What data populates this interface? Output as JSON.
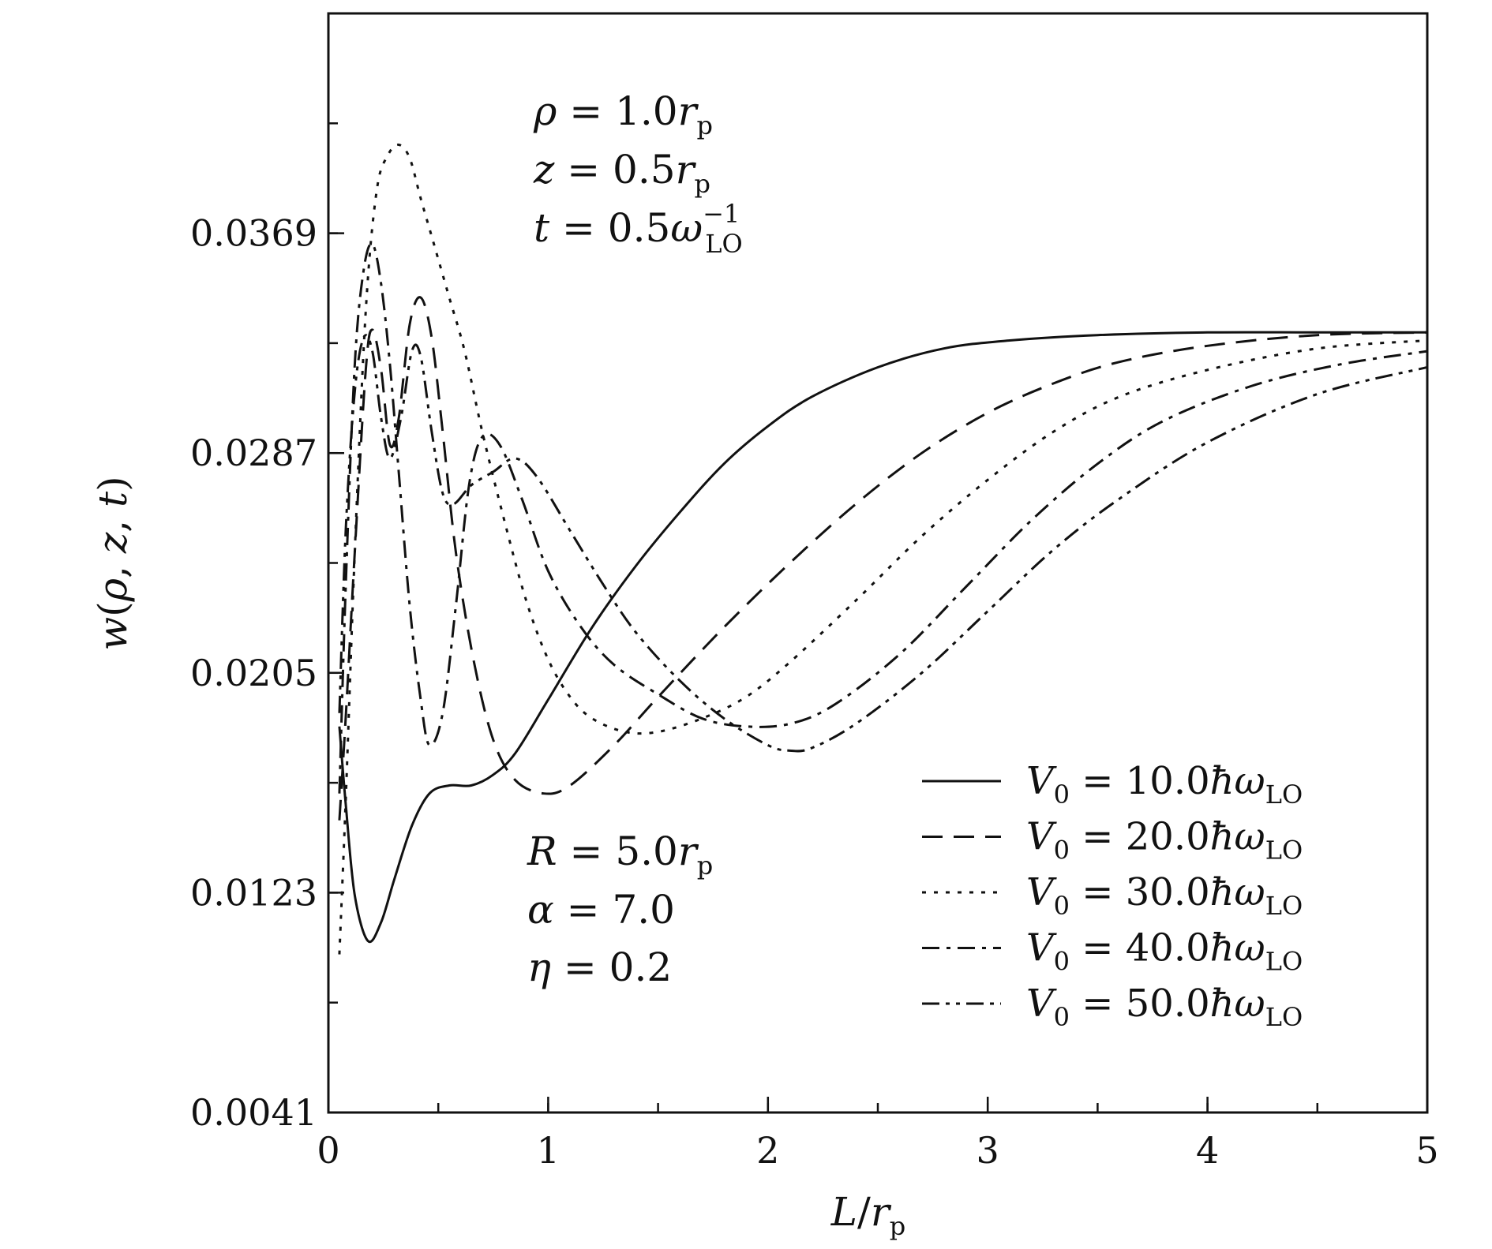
{
  "chart_data": {
    "type": "line",
    "xlabel": "L/r_p",
    "ylabel": "w(ρ, z, t)",
    "xlim": [
      0,
      5
    ],
    "ylim": [
      0.0041,
      0.0451
    ],
    "x_ticks": [
      0,
      1,
      2,
      3,
      4,
      5
    ],
    "x_tick_labels": [
      "0",
      "1",
      "2",
      "3",
      "4",
      "5"
    ],
    "y_ticks": [
      0.0041,
      0.0123,
      0.0205,
      0.0287,
      0.0369
    ],
    "y_tick_labels": [
      "0.0041",
      "0.0123",
      "0.0205",
      "0.0287",
      "0.0369"
    ],
    "x_minor_step": 0.5,
    "y_minor_step": 0.0041,
    "grid": false,
    "legend_position": "bottom-right",
    "annotations_top": [
      "ρ = 1.0r_p",
      "z = 0.5r_p",
      "t = 0.5ω_LO^-1"
    ],
    "annotations_bottom": [
      "R = 5.0r_p",
      "α = 7.0",
      "η = 0.2"
    ],
    "series": [
      {
        "name": "V0 = 10.0ħω_LO",
        "style": "solid",
        "points": [
          [
            0.05,
            0.0185
          ],
          [
            0.08,
            0.0155
          ],
          [
            0.12,
            0.0122
          ],
          [
            0.18,
            0.0105
          ],
          [
            0.24,
            0.0112
          ],
          [
            0.3,
            0.0128
          ],
          [
            0.38,
            0.0148
          ],
          [
            0.46,
            0.016
          ],
          [
            0.55,
            0.0163
          ],
          [
            0.65,
            0.0163
          ],
          [
            0.75,
            0.0167
          ],
          [
            0.85,
            0.0175
          ],
          [
            1.0,
            0.0195
          ],
          [
            1.2,
            0.0222
          ],
          [
            1.4,
            0.0245
          ],
          [
            1.6,
            0.0265
          ],
          [
            1.8,
            0.0283
          ],
          [
            2.0,
            0.0297
          ],
          [
            2.2,
            0.0308
          ],
          [
            2.5,
            0.0319
          ],
          [
            2.8,
            0.0326
          ],
          [
            3.1,
            0.0329
          ],
          [
            3.5,
            0.0331
          ],
          [
            4.0,
            0.0332
          ],
          [
            4.5,
            0.0332
          ],
          [
            5.0,
            0.0332
          ]
        ]
      },
      {
        "name": "V0 = 20.0ħω_LO",
        "style": "dashed",
        "points": [
          [
            0.05,
            0.015
          ],
          [
            0.08,
            0.019
          ],
          [
            0.12,
            0.025
          ],
          [
            0.17,
            0.0318
          ],
          [
            0.2,
            0.0333
          ],
          [
            0.24,
            0.0318
          ],
          [
            0.28,
            0.029
          ],
          [
            0.32,
            0.03
          ],
          [
            0.37,
            0.0335
          ],
          [
            0.42,
            0.0345
          ],
          [
            0.47,
            0.033
          ],
          [
            0.52,
            0.0295
          ],
          [
            0.58,
            0.025
          ],
          [
            0.66,
            0.021
          ],
          [
            0.75,
            0.018
          ],
          [
            0.85,
            0.0165
          ],
          [
            0.98,
            0.016
          ],
          [
            1.1,
            0.0163
          ],
          [
            1.3,
            0.0178
          ],
          [
            1.5,
            0.0196
          ],
          [
            1.8,
            0.0222
          ],
          [
            2.1,
            0.0246
          ],
          [
            2.4,
            0.0268
          ],
          [
            2.7,
            0.0287
          ],
          [
            3.0,
            0.0302
          ],
          [
            3.3,
            0.0313
          ],
          [
            3.6,
            0.0321
          ],
          [
            4.0,
            0.0327
          ],
          [
            4.5,
            0.0331
          ],
          [
            5.0,
            0.0332
          ]
        ]
      },
      {
        "name": "V0 = 30.0ħω_LO",
        "style": "dotted",
        "points": [
          [
            0.05,
            0.01
          ],
          [
            0.08,
            0.016
          ],
          [
            0.12,
            0.025
          ],
          [
            0.17,
            0.034
          ],
          [
            0.22,
            0.0385
          ],
          [
            0.27,
            0.0398
          ],
          [
            0.32,
            0.0402
          ],
          [
            0.37,
            0.0397
          ],
          [
            0.42,
            0.0382
          ],
          [
            0.48,
            0.0365
          ],
          [
            0.55,
            0.0345
          ],
          [
            0.62,
            0.0325
          ],
          [
            0.7,
            0.0295
          ],
          [
            0.8,
            0.0262
          ],
          [
            0.9,
            0.0232
          ],
          [
            1.0,
            0.021
          ],
          [
            1.1,
            0.0196
          ],
          [
            1.2,
            0.0188
          ],
          [
            1.35,
            0.0183
          ],
          [
            1.5,
            0.0183
          ],
          [
            1.7,
            0.0188
          ],
          [
            1.9,
            0.0196
          ],
          [
            2.1,
            0.0209
          ],
          [
            2.4,
            0.0232
          ],
          [
            2.7,
            0.0256
          ],
          [
            3.0,
            0.0277
          ],
          [
            3.3,
            0.0295
          ],
          [
            3.6,
            0.0308
          ],
          [
            4.0,
            0.0318
          ],
          [
            4.5,
            0.0326
          ],
          [
            5.0,
            0.0329
          ]
        ]
      },
      {
        "name": "V0 = 40.0ħω_LO",
        "style": "dashdot",
        "points": [
          [
            0.05,
            0.016
          ],
          [
            0.08,
            0.024
          ],
          [
            0.12,
            0.032
          ],
          [
            0.16,
            0.0355
          ],
          [
            0.2,
            0.0365
          ],
          [
            0.24,
            0.035
          ],
          [
            0.28,
            0.032
          ],
          [
            0.32,
            0.028
          ],
          [
            0.37,
            0.023
          ],
          [
            0.42,
            0.0195
          ],
          [
            0.46,
            0.0178
          ],
          [
            0.52,
            0.019
          ],
          [
            0.58,
            0.023
          ],
          [
            0.64,
            0.0275
          ],
          [
            0.7,
            0.0293
          ],
          [
            0.78,
            0.029
          ],
          [
            0.88,
            0.027
          ],
          [
            1.0,
            0.0243
          ],
          [
            1.15,
            0.0222
          ],
          [
            1.3,
            0.0208
          ],
          [
            1.5,
            0.0197
          ],
          [
            1.7,
            0.0188
          ],
          [
            1.9,
            0.0185
          ],
          [
            2.1,
            0.0186
          ],
          [
            2.3,
            0.0193
          ],
          [
            2.6,
            0.0212
          ],
          [
            2.9,
            0.0237
          ],
          [
            3.2,
            0.0262
          ],
          [
            3.5,
            0.0283
          ],
          [
            3.8,
            0.0299
          ],
          [
            4.2,
            0.0312
          ],
          [
            4.6,
            0.032
          ],
          [
            5.0,
            0.0325
          ]
        ]
      },
      {
        "name": "V0 = 50.0ħω_LO",
        "style": "dashdotdot",
        "points": [
          [
            0.05,
            0.019
          ],
          [
            0.08,
            0.026
          ],
          [
            0.12,
            0.031
          ],
          [
            0.16,
            0.033
          ],
          [
            0.2,
            0.0325
          ],
          [
            0.24,
            0.03
          ],
          [
            0.28,
            0.0285
          ],
          [
            0.33,
            0.03
          ],
          [
            0.38,
            0.0325
          ],
          [
            0.42,
            0.0323
          ],
          [
            0.47,
            0.0295
          ],
          [
            0.52,
            0.0272
          ],
          [
            0.57,
            0.0268
          ],
          [
            0.65,
            0.0275
          ],
          [
            0.75,
            0.028
          ],
          [
            0.85,
            0.0285
          ],
          [
            0.95,
            0.0278
          ],
          [
            1.1,
            0.0258
          ],
          [
            1.25,
            0.0238
          ],
          [
            1.4,
            0.022
          ],
          [
            1.6,
            0.0202
          ],
          [
            1.8,
            0.0188
          ],
          [
            2.0,
            0.0178
          ],
          [
            2.1,
            0.0176
          ],
          [
            2.2,
            0.0177
          ],
          [
            2.4,
            0.0186
          ],
          [
            2.7,
            0.0205
          ],
          [
            3.0,
            0.0228
          ],
          [
            3.3,
            0.0251
          ],
          [
            3.6,
            0.027
          ],
          [
            4.0,
            0.0291
          ],
          [
            4.5,
            0.0309
          ],
          [
            5.0,
            0.0319
          ]
        ]
      }
    ]
  }
}
